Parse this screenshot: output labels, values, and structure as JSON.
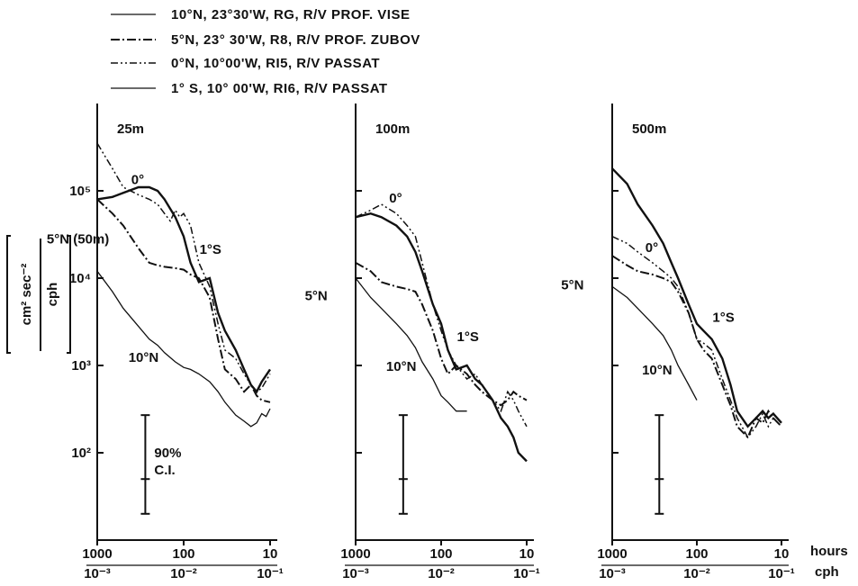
{
  "legend": [
    {
      "key": "10N",
      "label": "10°N, 23°30'W, RG, R/V  PROF. VISE"
    },
    {
      "key": "5N",
      "label": "5°N, 23° 30'W, R8, R/V PROF. ZUBOV"
    },
    {
      "key": "0",
      "label": "0°N, 10°00'W, RI5, R/V PASSAT"
    },
    {
      "key": "1S",
      "label": "1° S, 10° 00'W, RI6, R/V PASSAT"
    }
  ],
  "y_axis_label": {
    "numer": "cm² sec⁻²",
    "denom": "cph"
  },
  "bottom_units": {
    "hours": "hours",
    "cph": "cph"
  },
  "ci": {
    "label_top": "90%",
    "label_bot": "C.I."
  },
  "ticks": {
    "y": [
      {
        "v": 100,
        "label": "10²"
      },
      {
        "v": 1000,
        "label": "10³"
      },
      {
        "v": 10000,
        "label": "10⁴"
      },
      {
        "v": 100000,
        "label": "10⁵"
      }
    ],
    "hours": [
      {
        "v": 1000,
        "label": "1000"
      },
      {
        "v": 100,
        "label": "100"
      },
      {
        "v": 10,
        "label": "10"
      }
    ],
    "cph": [
      {
        "v": 0.001,
        "label": "10⁻³"
      },
      {
        "v": 0.01,
        "label": "10⁻²"
      },
      {
        "v": 0.1,
        "label": "10⁻¹"
      }
    ]
  },
  "chart_data": [
    {
      "type": "line",
      "title": "25m",
      "x_scale": "log",
      "y_scale": "log",
      "xlim": [
        0.001,
        0.1
      ],
      "ylim": [
        10,
        1000000
      ],
      "xlabel": "cph",
      "ylabel": "cm² sec⁻² / cph",
      "series": [
        {
          "name": "10°N",
          "x": [
            0.001,
            0.0015,
            0.002,
            0.003,
            0.004,
            0.005,
            0.006,
            0.008,
            0.01,
            0.012,
            0.015,
            0.02,
            0.025,
            0.03,
            0.04,
            0.05,
            0.06,
            0.07,
            0.08,
            0.09,
            0.1
          ],
          "y": [
            12000,
            7000,
            4500,
            2800,
            2000,
            1700,
            1400,
            1100,
            950,
            900,
            800,
            650,
            500,
            380,
            270,
            230,
            200,
            220,
            280,
            260,
            320
          ]
        },
        {
          "name": "5°N (50m)",
          "x": [
            0.001,
            0.0015,
            0.002,
            0.003,
            0.004,
            0.005,
            0.006,
            0.008,
            0.01,
            0.012,
            0.015,
            0.02,
            0.025,
            0.03,
            0.04,
            0.05,
            0.06,
            0.07,
            0.08,
            0.1
          ],
          "y": [
            80000,
            55000,
            40000,
            22000,
            15000,
            14000,
            13500,
            13000,
            12500,
            11000,
            10000,
            6000,
            2000,
            900,
            700,
            500,
            600,
            450,
            400,
            380
          ]
        },
        {
          "name": "0°",
          "x": [
            0.001,
            0.0015,
            0.002,
            0.003,
            0.004,
            0.005,
            0.006,
            0.007,
            0.008,
            0.009,
            0.01,
            0.012,
            0.015,
            0.02,
            0.025,
            0.03,
            0.04,
            0.05,
            0.06,
            0.07,
            0.08,
            0.1
          ],
          "y": [
            350000,
            180000,
            110000,
            90000,
            80000,
            70000,
            55000,
            45000,
            60000,
            50000,
            55000,
            40000,
            15000,
            8000,
            3000,
            1500,
            1200,
            800,
            600,
            500,
            550,
            800
          ]
        },
        {
          "name": "1°S",
          "x": [
            0.001,
            0.0015,
            0.002,
            0.003,
            0.004,
            0.005,
            0.006,
            0.008,
            0.01,
            0.012,
            0.015,
            0.02,
            0.025,
            0.03,
            0.04,
            0.05,
            0.06,
            0.07,
            0.08,
            0.1
          ],
          "y": [
            80000,
            85000,
            95000,
            110000,
            110000,
            100000,
            80000,
            50000,
            30000,
            15000,
            9000,
            10000,
            4000,
            2500,
            1500,
            900,
            600,
            500,
            650,
            900
          ]
        }
      ]
    },
    {
      "type": "line",
      "title": "100m",
      "x_scale": "log",
      "y_scale": "log",
      "xlim": [
        0.001,
        0.1
      ],
      "ylim": [
        10,
        1000000
      ],
      "xlabel": "cph",
      "ylabel": "cm² sec⁻² / cph",
      "series": [
        {
          "name": "10°N",
          "x": [
            0.001,
            0.0015,
            0.002,
            0.003,
            0.004,
            0.005,
            0.006,
            0.008,
            0.01,
            0.012,
            0.015,
            0.02
          ],
          "y": [
            10000,
            6000,
            4500,
            3000,
            2200,
            1600,
            1100,
            700,
            450,
            380,
            300,
            300
          ]
        },
        {
          "name": "5°N",
          "x": [
            0.001,
            0.0015,
            0.002,
            0.003,
            0.004,
            0.005,
            0.006,
            0.008,
            0.01,
            0.012,
            0.015,
            0.02,
            0.025,
            0.03,
            0.04,
            0.05,
            0.06,
            0.07,
            0.08,
            0.1
          ],
          "y": [
            15000,
            12000,
            9000,
            8000,
            7500,
            7000,
            5000,
            2500,
            1200,
            800,
            1000,
            800,
            600,
            500,
            400,
            350,
            400,
            500,
            450,
            400
          ]
        },
        {
          "name": "0°",
          "x": [
            0.001,
            0.0015,
            0.002,
            0.003,
            0.004,
            0.005,
            0.006,
            0.008,
            0.01,
            0.012,
            0.015,
            0.02,
            0.025,
            0.03,
            0.04,
            0.05,
            0.06,
            0.07,
            0.08,
            0.1
          ],
          "y": [
            50000,
            60000,
            70000,
            55000,
            40000,
            30000,
            15000,
            5000,
            2500,
            1500,
            1000,
            700,
            800,
            600,
            400,
            300,
            500,
            400,
            300,
            200
          ]
        },
        {
          "name": "1°S",
          "x": [
            0.001,
            0.0015,
            0.002,
            0.003,
            0.004,
            0.005,
            0.006,
            0.008,
            0.01,
            0.012,
            0.015,
            0.02,
            0.025,
            0.03,
            0.04,
            0.05,
            0.06,
            0.07,
            0.08,
            0.1
          ],
          "y": [
            50000,
            55000,
            50000,
            40000,
            30000,
            20000,
            12000,
            5000,
            3000,
            1500,
            900,
            1000,
            700,
            600,
            400,
            250,
            200,
            150,
            100,
            80
          ]
        }
      ]
    },
    {
      "type": "line",
      "title": "500m",
      "x_scale": "log",
      "y_scale": "log",
      "xlim": [
        0.001,
        0.1
      ],
      "ylim": [
        10,
        1000000
      ],
      "xlabel": "cph",
      "ylabel": "cm² sec⁻² / cph",
      "series": [
        {
          "name": "10°N",
          "x": [
            0.001,
            0.0015,
            0.002,
            0.003,
            0.004,
            0.005,
            0.006,
            0.008,
            0.01
          ],
          "y": [
            8000,
            6000,
            4500,
            3000,
            2200,
            1500,
            1000,
            600,
            400
          ]
        },
        {
          "name": "5°N",
          "x": [
            0.001,
            0.0015,
            0.002,
            0.003,
            0.004,
            0.005,
            0.006,
            0.008,
            0.01,
            0.012,
            0.015,
            0.02,
            0.025,
            0.03,
            0.04,
            0.05,
            0.06,
            0.07,
            0.08,
            0.1
          ],
          "y": [
            18000,
            14000,
            12000,
            11000,
            10000,
            9000,
            7000,
            4000,
            2000,
            1500,
            1200,
            600,
            350,
            200,
            150,
            250,
            220,
            300,
            250,
            200
          ]
        },
        {
          "name": "0°",
          "x": [
            0.001,
            0.0015,
            0.002,
            0.003,
            0.004,
            0.005,
            0.006,
            0.008,
            0.01,
            0.012,
            0.015,
            0.02,
            0.025,
            0.03,
            0.04,
            0.05,
            0.06,
            0.07,
            0.08,
            0.1
          ],
          "y": [
            30000,
            25000,
            20000,
            15000,
            12000,
            10000,
            8000,
            4000,
            2000,
            1800,
            1500,
            700,
            400,
            250,
            150,
            200,
            280,
            200,
            250,
            200
          ]
        },
        {
          "name": "1°S",
          "x": [
            0.001,
            0.0015,
            0.002,
            0.003,
            0.004,
            0.005,
            0.006,
            0.008,
            0.01,
            0.012,
            0.015,
            0.02,
            0.025,
            0.03,
            0.04,
            0.05,
            0.06,
            0.07,
            0.08,
            0.1
          ],
          "y": [
            180000,
            120000,
            70000,
            40000,
            25000,
            15000,
            10000,
            5000,
            3000,
            2500,
            2000,
            1200,
            600,
            300,
            200,
            250,
            300,
            250,
            280,
            220
          ]
        }
      ]
    }
  ]
}
